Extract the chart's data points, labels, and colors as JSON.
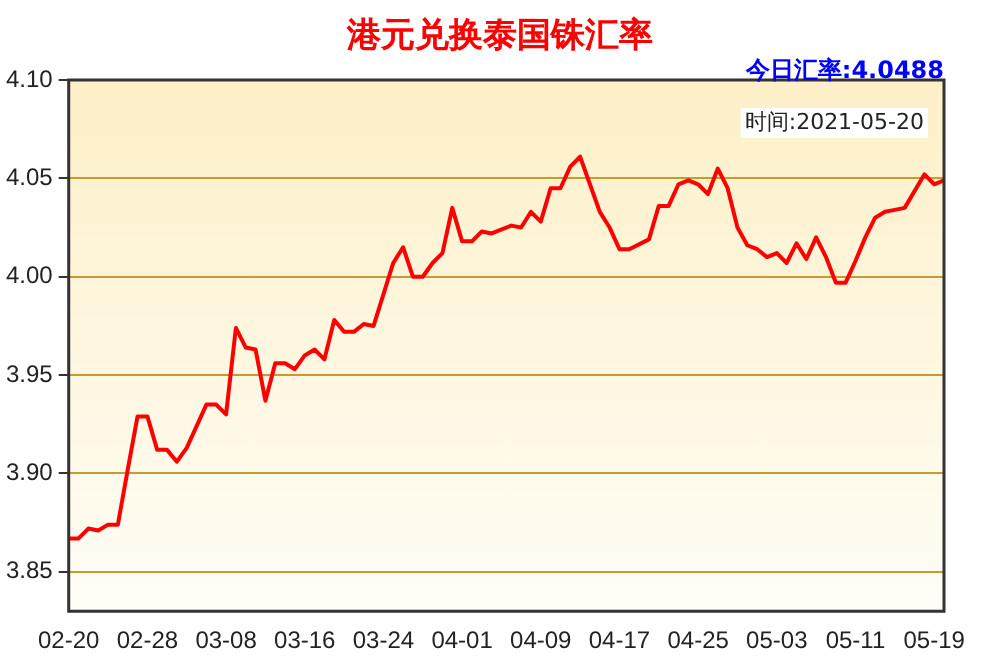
{
  "chart_data": {
    "type": "line",
    "title": "港元兑换泰国铢汇率",
    "subtitle": "今日汇率:4.0488",
    "annotations": [
      "时间:2021-05-20"
    ],
    "x": [
      "2021-02-20",
      "2021-02-21",
      "2021-02-22",
      "2021-02-23",
      "2021-02-24",
      "2021-02-25",
      "2021-02-26",
      "2021-02-27",
      "2021-02-28",
      "2021-03-01",
      "2021-03-02",
      "2021-03-03",
      "2021-03-04",
      "2021-03-06",
      "2021-03-07",
      "2021-03-08",
      "2021-03-09",
      "2021-03-10",
      "2021-03-11",
      "2021-03-12",
      "2021-03-13",
      "2021-03-14",
      "2021-03-15",
      "2021-03-16",
      "2021-03-17",
      "2021-03-18",
      "2021-03-19",
      "2021-03-20",
      "2021-03-21",
      "2021-03-22",
      "2021-03-23",
      "2021-03-25",
      "2021-03-26",
      "2021-03-27",
      "2021-03-28",
      "2021-03-29",
      "2021-03-30",
      "2021-03-31",
      "2021-04-01",
      "2021-04-02",
      "2021-04-03",
      "2021-04-04",
      "2021-04-06",
      "2021-04-07",
      "2021-04-08",
      "2021-04-09",
      "2021-04-10",
      "2021-04-11",
      "2021-04-12",
      "2021-04-13",
      "2021-04-15",
      "2021-04-16",
      "2021-04-17",
      "2021-04-18",
      "2021-04-20",
      "2021-04-21",
      "2021-04-22",
      "2021-04-23",
      "2021-04-24",
      "2021-04-25",
      "2021-04-26",
      "2021-04-27",
      "2021-04-28",
      "2021-04-29",
      "2021-04-30",
      "2021-05-01",
      "2021-05-02",
      "2021-05-03",
      "2021-05-04",
      "2021-05-05",
      "2021-05-06",
      "2021-05-07",
      "2021-05-08",
      "2021-05-09",
      "2021-05-10",
      "2021-05-11",
      "2021-05-12",
      "2021-05-13",
      "2021-05-14",
      "2021-05-15",
      "2021-05-16",
      "2021-05-18",
      "2021-05-19",
      "2021-05-20"
    ],
    "series": [
      {
        "color": "#ff0000",
        "values": [
          3.867,
          3.867,
          3.872,
          3.871,
          3.874,
          3.874,
          3.902,
          3.929,
          3.929,
          3.912,
          3.912,
          3.906,
          3.913,
          3.935,
          3.935,
          3.93,
          3.974,
          3.964,
          3.963,
          3.937,
          3.956,
          3.956,
          3.953,
          3.96,
          3.963,
          3.958,
          3.978,
          3.972,
          3.972,
          3.976,
          3.975,
          4.007,
          4.015,
          4.0,
          4.0,
          4.007,
          4.012,
          4.035,
          4.018,
          4.018,
          4.023,
          4.022,
          4.026,
          4.025,
          4.033,
          4.028,
          4.045,
          4.045,
          4.056,
          4.061,
          4.033,
          4.025,
          4.014,
          4.014,
          4.019,
          4.036,
          4.036,
          4.047,
          4.049,
          4.047,
          4.042,
          4.055,
          4.045,
          4.025,
          4.016,
          4.014,
          4.01,
          4.012,
          4.007,
          4.017,
          4.009,
          4.02,
          4.01,
          3.997,
          3.997,
          4.008,
          4.02,
          4.03,
          4.033,
          4.034,
          4.035,
          4.052,
          4.047,
          4.049
        ]
      }
    ],
    "xlim": [
      "2021-02-20",
      "2021-05-20"
    ],
    "xticks": [
      {
        "value": "2021-02-20",
        "label": "02-20"
      },
      {
        "value": "2021-02-28",
        "label": "02-28"
      },
      {
        "value": "2021-03-08",
        "label": "03-08"
      },
      {
        "value": "2021-03-16",
        "label": "03-16"
      },
      {
        "value": "2021-03-24",
        "label": "03-24"
      },
      {
        "value": "2021-04-01",
        "label": "04-01"
      },
      {
        "value": "2021-04-09",
        "label": "04-09"
      },
      {
        "value": "2021-04-17",
        "label": "04-17"
      },
      {
        "value": "2021-04-25",
        "label": "04-25"
      },
      {
        "value": "2021-05-03",
        "label": "05-03"
      },
      {
        "value": "2021-05-11",
        "label": "05-11"
      },
      {
        "value": "2021-05-19",
        "label": "05-19"
      }
    ],
    "ylim": [
      3.83,
      4.1
    ],
    "yticks": [
      3.85,
      {
        "value": 3.9,
        "label": "3.90"
      },
      3.95,
      {
        "value": 4.0,
        "label": "4.00"
      },
      4.05,
      {
        "value": 4.1,
        "label": "4.10"
      }
    ],
    "grid": "y",
    "legend": false,
    "marker": "none",
    "line_style": "solid"
  }
}
